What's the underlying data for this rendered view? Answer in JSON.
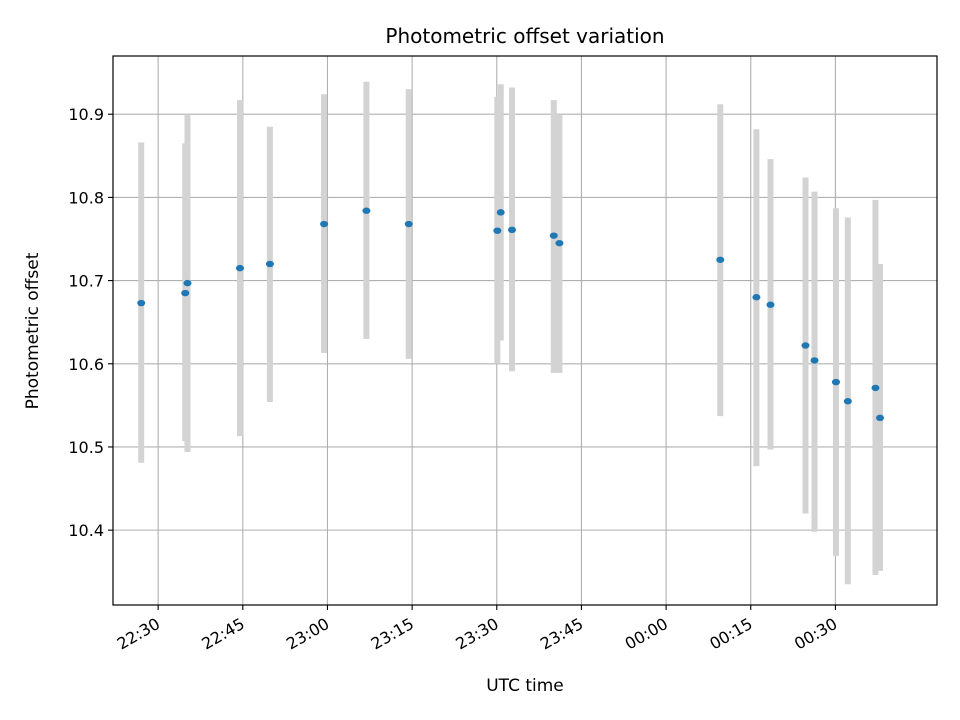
{
  "chart_data": {
    "type": "scatter",
    "title": "Photometric offset variation",
    "xlabel": "UTC time",
    "ylabel": "Photometric offset",
    "x_unit": "UTC time (HH:MM, starting evening; values after 24:00 roll past midnight)",
    "xlim": [
      "22:22",
      "00:48"
    ],
    "ylim": [
      10.31,
      10.97
    ],
    "grid": true,
    "x_ticks": [
      "22:30",
      "22:45",
      "23:00",
      "23:15",
      "23:30",
      "23:45",
      "00:00",
      "00:15",
      "00:30"
    ],
    "y_ticks": [
      "10.4",
      "10.5",
      "10.6",
      "10.7",
      "10.8",
      "10.9"
    ],
    "colors": {
      "point": "#1f77b4",
      "errorbar": "#d3d3d3",
      "grid": "#b0b0b0"
    },
    "series": [
      {
        "points": [
          {
            "time": "22:27:00",
            "y": 10.673,
            "ylow": 10.481,
            "yhigh": 10.866
          },
          {
            "time": "22:34:48",
            "y": 10.685,
            "ylow": 10.507,
            "yhigh": 10.865
          },
          {
            "time": "22:35:12",
            "y": 10.697,
            "ylow": 10.494,
            "yhigh": 10.9
          },
          {
            "time": "22:44:30",
            "y": 10.715,
            "ylow": 10.513,
            "yhigh": 10.917
          },
          {
            "time": "22:49:48",
            "y": 10.72,
            "ylow": 10.554,
            "yhigh": 10.885
          },
          {
            "time": "22:59:24",
            "y": 10.768,
            "ylow": 10.613,
            "yhigh": 10.924
          },
          {
            "time": "23:06:54",
            "y": 10.784,
            "ylow": 10.63,
            "yhigh": 10.939
          },
          {
            "time": "23:14:24",
            "y": 10.768,
            "ylow": 10.606,
            "yhigh": 10.93
          },
          {
            "time": "23:30:06",
            "y": 10.76,
            "ylow": 10.6,
            "yhigh": 10.921
          },
          {
            "time": "23:30:42",
            "y": 10.782,
            "ylow": 10.628,
            "yhigh": 10.936
          },
          {
            "time": "23:32:42",
            "y": 10.761,
            "ylow": 10.591,
            "yhigh": 10.932
          },
          {
            "time": "23:40:06",
            "y": 10.754,
            "ylow": 10.589,
            "yhigh": 10.917
          },
          {
            "time": "23:41:06",
            "y": 10.745,
            "ylow": 10.589,
            "yhigh": 10.9
          },
          {
            "time": "00:09:36",
            "y": 10.725,
            "ylow": 10.537,
            "yhigh": 10.912
          },
          {
            "time": "00:16:00",
            "y": 10.68,
            "ylow": 10.477,
            "yhigh": 10.882
          },
          {
            "time": "00:18:30",
            "y": 10.671,
            "ylow": 10.497,
            "yhigh": 10.846
          },
          {
            "time": "00:24:42",
            "y": 10.622,
            "ylow": 10.42,
            "yhigh": 10.824
          },
          {
            "time": "00:26:18",
            "y": 10.604,
            "ylow": 10.398,
            "yhigh": 10.807
          },
          {
            "time": "00:30:06",
            "y": 10.578,
            "ylow": 10.369,
            "yhigh": 10.787
          },
          {
            "time": "00:32:12",
            "y": 10.555,
            "ylow": 10.335,
            "yhigh": 10.776
          },
          {
            "time": "00:37:06",
            "y": 10.571,
            "ylow": 10.346,
            "yhigh": 10.797
          },
          {
            "time": "00:37:54",
            "y": 10.535,
            "ylow": 10.351,
            "yhigh": 10.72
          }
        ]
      }
    ]
  }
}
